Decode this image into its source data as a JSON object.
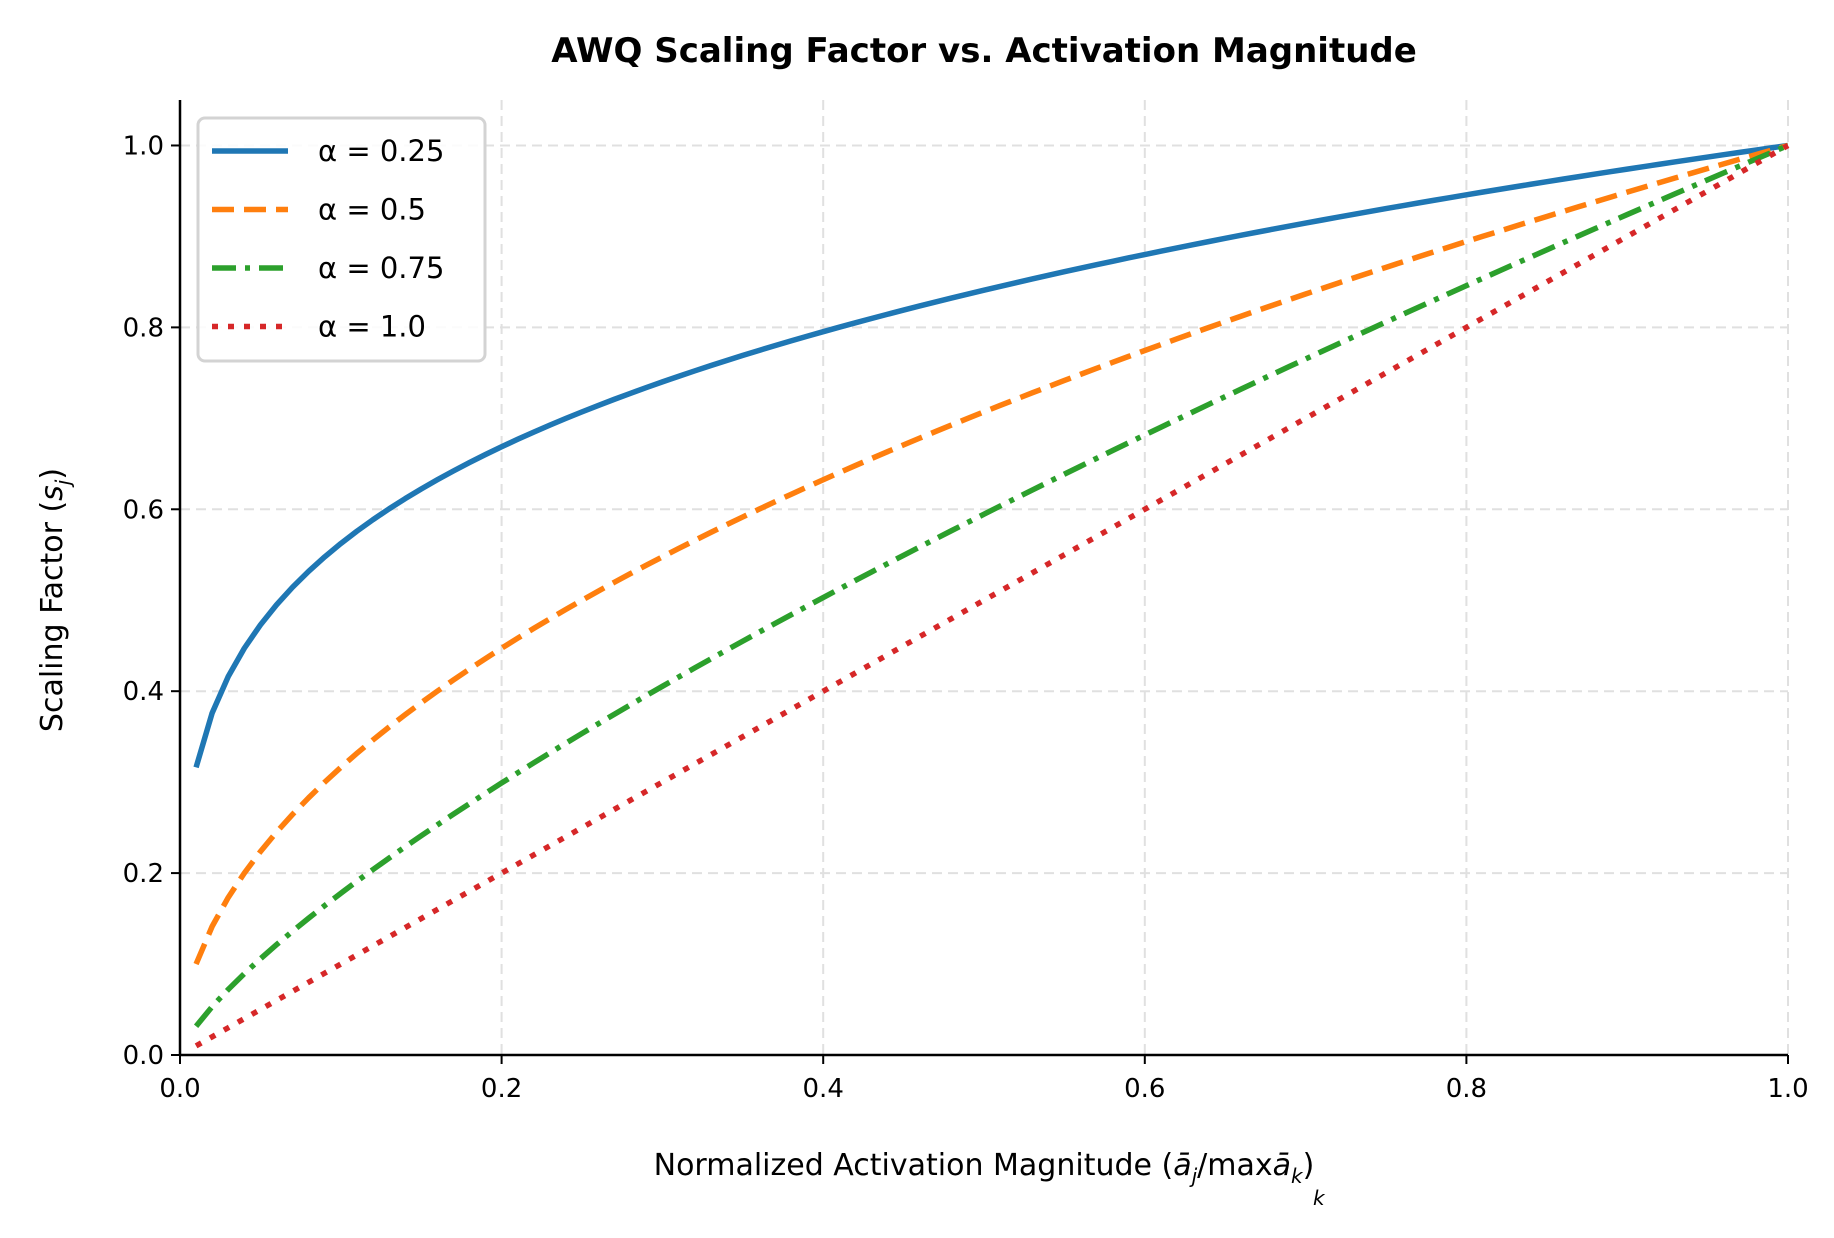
{
  "chart_data": {
    "type": "line",
    "title": "AWQ Scaling Factor vs. Activation Magnitude",
    "xlabel": "Normalized Activation Magnitude (ā_j/max_k ā_k)",
    "xlabel_parts": {
      "main": "Normalized Activation Magnitude (",
      "a": "ā",
      "j": "j",
      "slash_max": "/max",
      "a2": "ā",
      "k": "k",
      "close": ")",
      "under": "k"
    },
    "ylabel": "Scaling Factor (s_j)",
    "ylabel_parts": {
      "main": "Scaling Factor (",
      "s": "s",
      "j": "j",
      "close": ")"
    },
    "xlim": [
      0,
      1.0
    ],
    "ylim": [
      0,
      1.05
    ],
    "xticks": [
      "0.0",
      "0.2",
      "0.4",
      "0.6",
      "0.8",
      "1.0"
    ],
    "yticks": [
      "0.0",
      "0.2",
      "0.4",
      "0.6",
      "0.8",
      "1.0"
    ],
    "grid": true,
    "legend_position": "top-left",
    "x_range": [
      0.01,
      1.0
    ],
    "num_points": 100,
    "function": "s = x^alpha",
    "series": [
      {
        "name": "α = 0.25",
        "alpha": 0.25,
        "color": "#1f77b4",
        "style": "solid"
      },
      {
        "name": "α = 0.5",
        "alpha": 0.5,
        "color": "#ff7f0e",
        "style": "dashed"
      },
      {
        "name": "α = 0.75",
        "alpha": 0.75,
        "color": "#2ca02c",
        "style": "dashdot"
      },
      {
        "name": "α = 1.0",
        "alpha": 1.0,
        "color": "#d62728",
        "style": "dotted"
      }
    ]
  }
}
